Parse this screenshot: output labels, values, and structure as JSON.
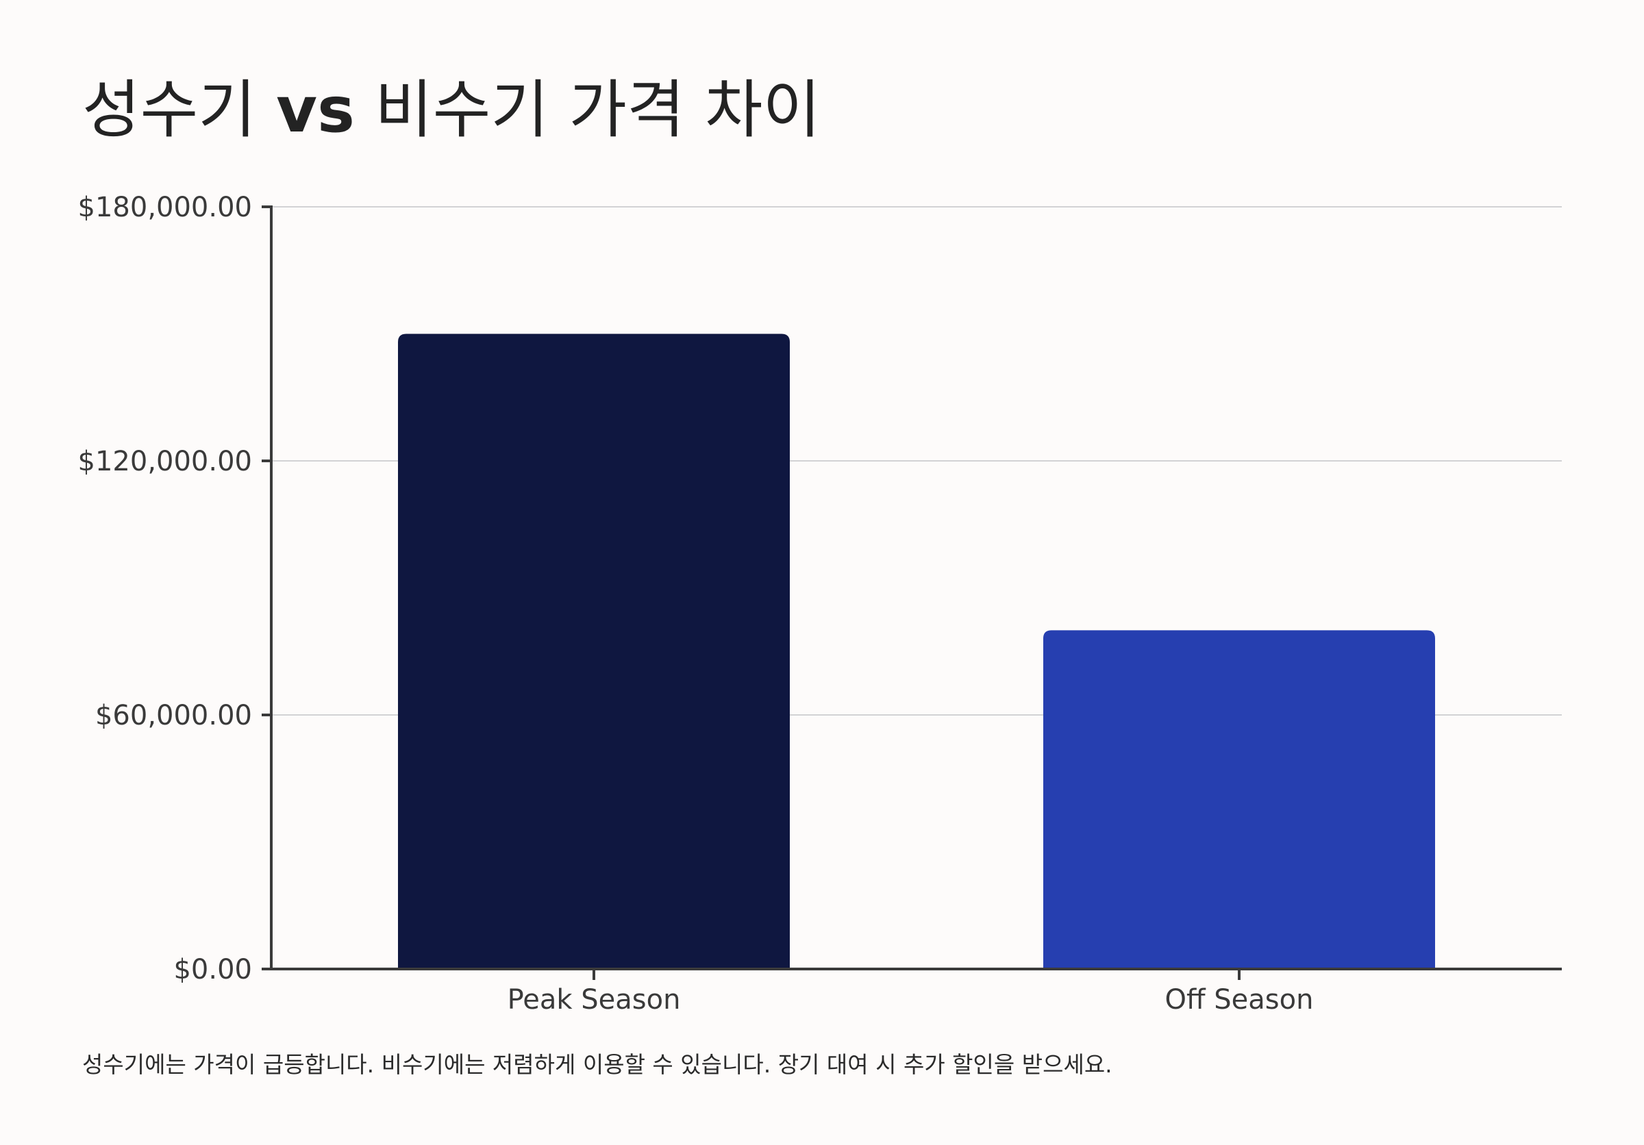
{
  "chart_data": {
    "type": "bar",
    "title_prefix": "성수기 ",
    "title_bold": "vs",
    "title_suffix": " 비수기 가격 차이",
    "categories": [
      "Peak Season",
      "Off Season"
    ],
    "values": [
      150000,
      80000
    ],
    "colors": [
      "#0f1740",
      "#263fb0"
    ],
    "ylim": [
      0,
      180000
    ],
    "yticks": [
      0,
      60000,
      120000,
      180000
    ],
    "ytick_labels": [
      "$0.00",
      "$60,000.00",
      "$120,000.00",
      "$180,000.00"
    ],
    "grid": true,
    "xlabel": "",
    "ylabel": ""
  },
  "caption": "성수기에는 가격이 급등합니다. 비수기에는 저렴하게 이용할 수 있습니다. 장기 대여 시 추가 할인을 받으세요."
}
